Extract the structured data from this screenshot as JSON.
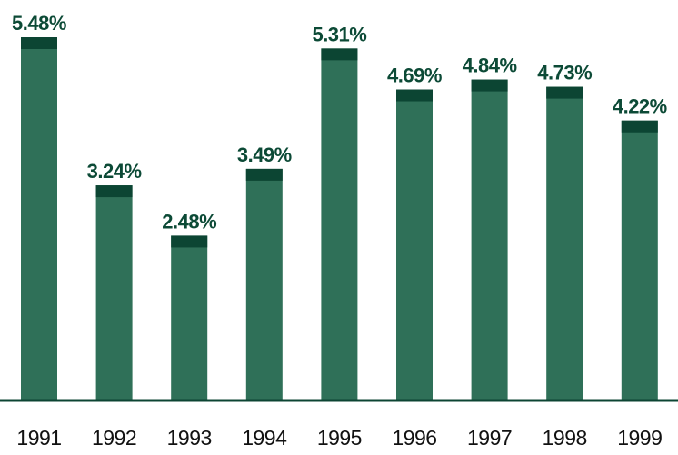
{
  "chart_data": {
    "type": "bar",
    "title": "",
    "xlabel": "",
    "ylabel": "",
    "categories": [
      "1991",
      "1992",
      "1993",
      "1994",
      "1995",
      "1996",
      "1997",
      "1998",
      "1999"
    ],
    "values": [
      5.48,
      3.24,
      2.48,
      3.49,
      5.31,
      4.69,
      4.84,
      4.73,
      4.22
    ],
    "value_labels": [
      "5.48%",
      "3.24%",
      "2.48%",
      "3.49%",
      "5.31%",
      "4.69%",
      "4.84%",
      "4.73%",
      "4.22%"
    ],
    "ylim": [
      0,
      5.48
    ],
    "grid": false,
    "legend": "none",
    "colors": {
      "bar": "#2f7058",
      "bar_cap": "#0c4533",
      "label": "#0c4a36",
      "axis": "#0c4533"
    }
  }
}
